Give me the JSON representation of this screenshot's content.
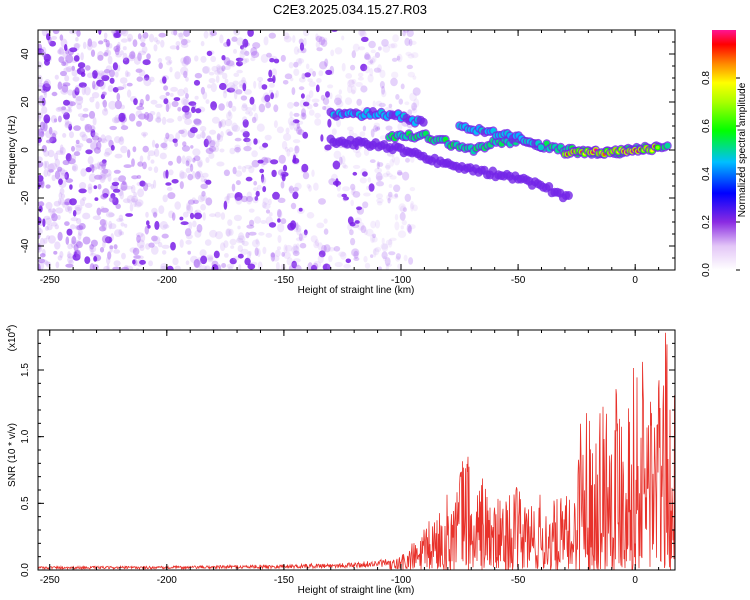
{
  "title": "C2E3.2025.034.15.27.R03",
  "chart_data": [
    {
      "type": "heatmap",
      "name": "spectrogram",
      "xlabel": "Height of straight line (km)",
      "ylabel": "Frequency (Hz)",
      "xlim": [
        -255,
        17
      ],
      "ylim": [
        -50,
        50
      ],
      "xticks": [
        -250,
        -200,
        -150,
        -100,
        -50,
        0
      ],
      "yticks": [
        -40,
        -20,
        0,
        20,
        40
      ],
      "colorbar": {
        "label": "Normalized spectral amplitude",
        "range": [
          0,
          1
        ],
        "ticks": [
          "0.0",
          "0.2",
          "0.4",
          "0.6",
          "0.8"
        ],
        "tick_values": [
          0.0,
          0.2,
          0.4,
          0.6,
          0.8
        ]
      },
      "noise": {
        "x_range": [
          -255,
          -105
        ],
        "y_range": [
          -50,
          50
        ],
        "amplitude": 0.05
      },
      "tracks": [
        {
          "x": [
            -130,
            -110,
            -100,
            -90
          ],
          "y": [
            15,
            15,
            14,
            11
          ],
          "amp": 0.35
        },
        {
          "x": [
            -105,
            -90,
            -80,
            -70,
            -60,
            -50,
            -40,
            -30,
            -20,
            -10,
            0,
            10,
            15
          ],
          "y": [
            6,
            6,
            3,
            0,
            3,
            4,
            2,
            0,
            -1,
            -1,
            0,
            2,
            1
          ],
          "amp": 0.55
        },
        {
          "x": [
            -30,
            -20,
            -10,
            0,
            10
          ],
          "y": [
            -1,
            -1,
            -1,
            0,
            1
          ],
          "amp": 0.95
        },
        {
          "x": [
            -130,
            -110,
            -100,
            -90,
            -80
          ],
          "y": [
            4,
            2,
            0,
            -3,
            -6
          ],
          "amp": 0.25
        },
        {
          "x": [
            -80,
            -60,
            -50,
            -40,
            -35,
            -28
          ],
          "y": [
            -6,
            -10,
            -12,
            -15,
            -17,
            -20
          ],
          "amp": 0.2
        },
        {
          "x": [
            -75,
            -60,
            -50,
            -40
          ],
          "y": [
            10,
            7,
            5,
            2
          ],
          "amp": 0.4
        }
      ]
    },
    {
      "type": "line",
      "name": "snr",
      "xlabel": "Height of straight line (km)",
      "ylabel": "SNR (10 * v/v)",
      "y_multiplier": "(x10",
      "y_multiplier_exp": "4",
      "y_multiplier_close": ")",
      "xlim": [
        -255,
        17
      ],
      "ylim": [
        0,
        1.8
      ],
      "xticks": [
        -250,
        -200,
        -150,
        -100,
        -50,
        0
      ],
      "yticks": [
        0.0,
        0.5,
        1.0,
        1.5
      ],
      "ytick_labels": [
        "0.0",
        "0.5",
        "1.0",
        "1.5"
      ],
      "color": "#e8322b",
      "envelope": {
        "x": [
          -255,
          -200,
          -150,
          -120,
          -105,
          -100,
          -95,
          -90,
          -85,
          -80,
          -75,
          -72,
          -70,
          -65,
          -60,
          -55,
          -50,
          -45,
          -40,
          -35,
          -30,
          -27,
          -25,
          -22,
          -20,
          -15,
          -10,
          -5,
          0,
          5,
          10,
          13,
          15,
          17
        ],
        "y": [
          0.02,
          0.02,
          0.03,
          0.04,
          0.06,
          0.12,
          0.2,
          0.3,
          0.45,
          0.55,
          0.75,
          1.05,
          0.55,
          0.7,
          0.5,
          0.55,
          0.6,
          0.55,
          0.55,
          0.5,
          0.55,
          0.5,
          0.85,
          1.5,
          1.1,
          1.3,
          1.5,
          1.45,
          1.5,
          1.6,
          1.45,
          1.75,
          1.3,
          1.25
        ]
      }
    }
  ]
}
